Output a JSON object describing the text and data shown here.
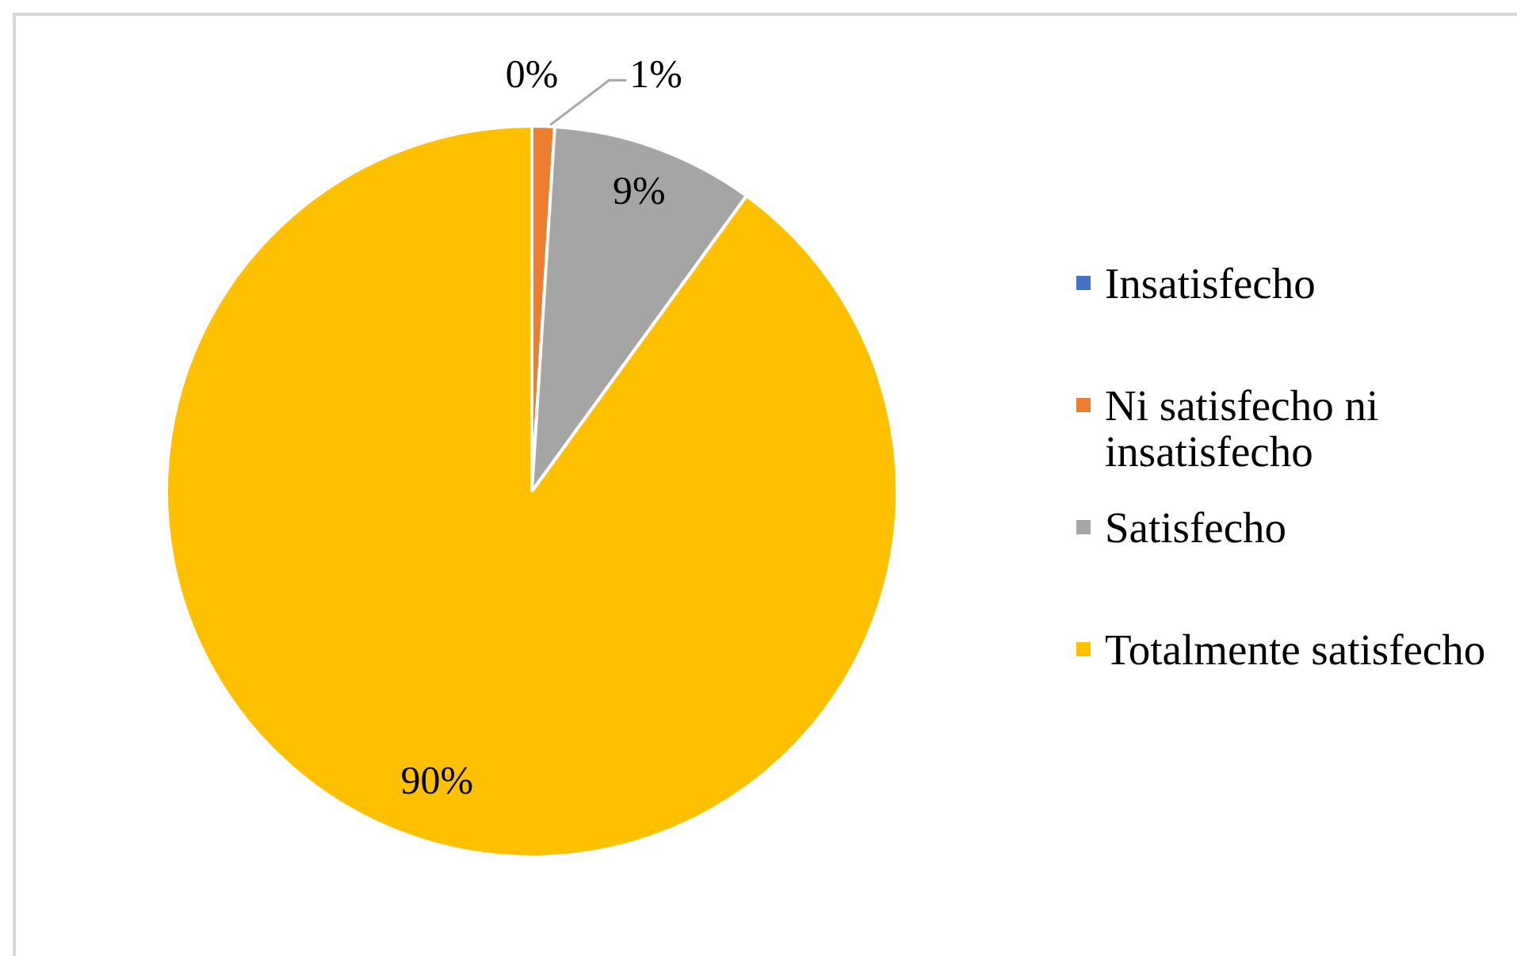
{
  "chart_data": {
    "type": "pie",
    "categories": [
      "Insatisfecho",
      "Ni satisfecho ni insatisfecho",
      "Satisfecho",
      "Totalmente satisfecho"
    ],
    "values": [
      0,
      1,
      9,
      90
    ],
    "colors": [
      "#4472c4",
      "#ed7d31",
      "#a5a5a5",
      "#ffc000"
    ],
    "value_labels": [
      "0%",
      "1%",
      "9%",
      "90%"
    ],
    "legend": "right"
  }
}
